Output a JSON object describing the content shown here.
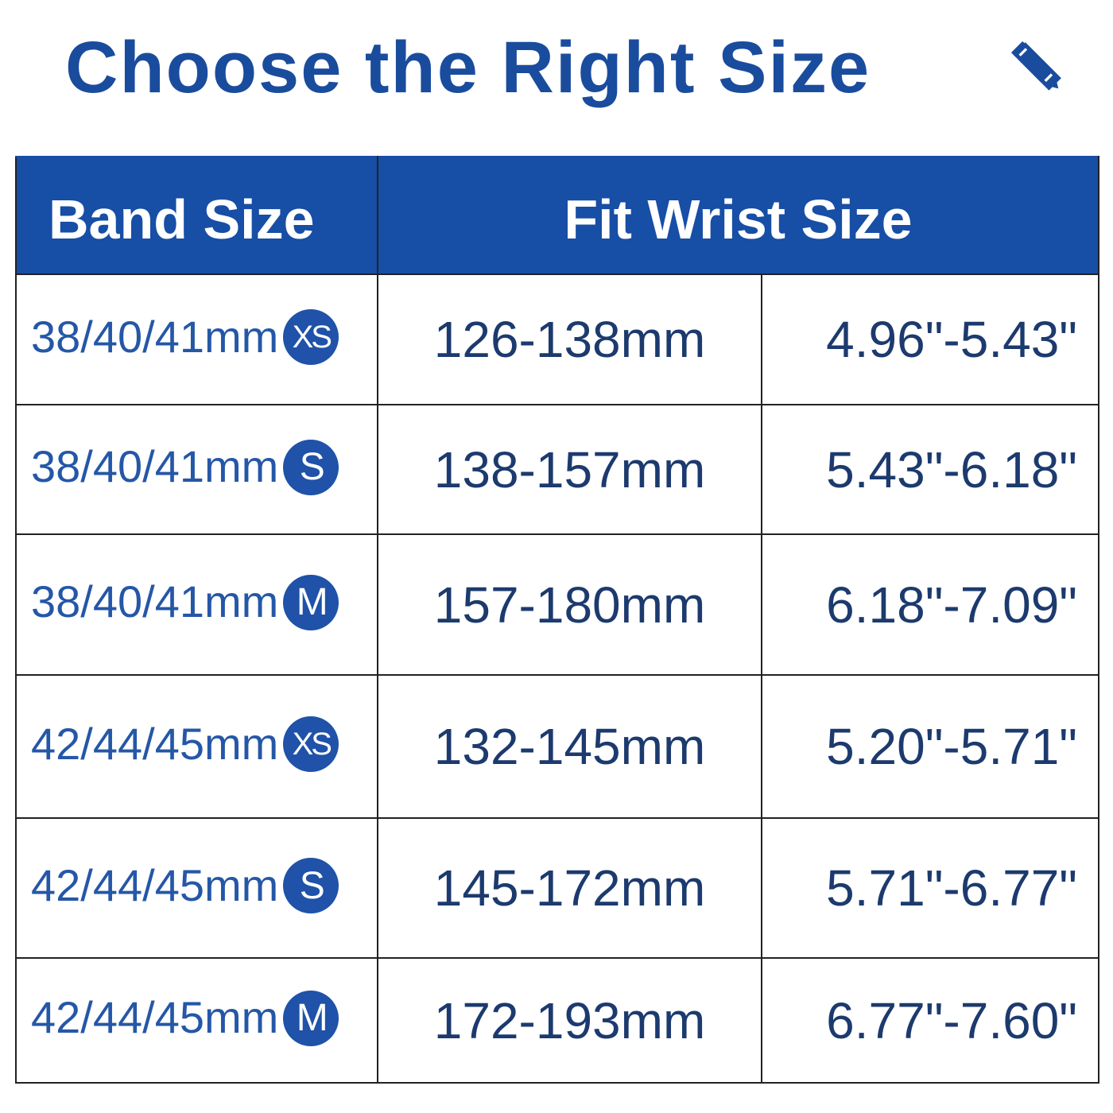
{
  "title": "Choose the Right Size",
  "title_icon": "ruler-pencil-icon",
  "colors": {
    "header_bg": "#174ea6",
    "title": "#1a4c9e",
    "band_text": "#2557a7",
    "value_text": "#1c3a6e"
  },
  "headers": {
    "band": "Band Size",
    "wrist": "Fit Wrist Size"
  },
  "rows": [
    {
      "band": "38/40/41mm",
      "size": "XS",
      "mm": "126-138mm",
      "inch": "4.96\"-5.43\""
    },
    {
      "band": "38/40/41mm",
      "size": "S",
      "mm": "138-157mm",
      "inch": "5.43\"-6.18\""
    },
    {
      "band": "38/40/41mm",
      "size": "M",
      "mm": "157-180mm",
      "inch": "6.18\"-7.09\""
    },
    {
      "band": "42/44/45mm",
      "size": "XS",
      "mm": "132-145mm",
      "inch": "5.20\"-5.71\""
    },
    {
      "band": "42/44/45mm",
      "size": "S",
      "mm": "145-172mm",
      "inch": "5.71\"-6.77\""
    },
    {
      "band": "42/44/45mm",
      "size": "M",
      "mm": "172-193mm",
      "inch": "6.77\"-7.60\""
    }
  ]
}
